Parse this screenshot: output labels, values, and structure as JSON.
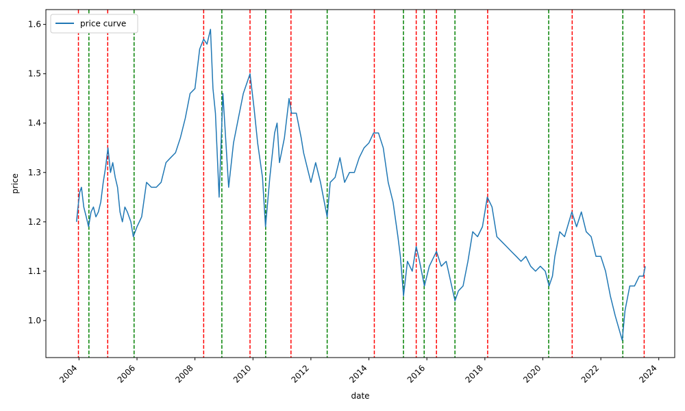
{
  "chart_data": {
    "type": "line",
    "xlabel": "date",
    "ylabel": "price",
    "xlim": [
      "2002-11-10",
      "2024-07-20"
    ],
    "ylim": [
      0.925,
      1.63
    ],
    "x_ticks": [
      "2004",
      "2006",
      "2008",
      "2010",
      "2012",
      "2014",
      "2016",
      "2018",
      "2020",
      "2022",
      "2024"
    ],
    "y_ticks": [
      "1.0",
      "1.1",
      "1.2",
      "1.3",
      "1.4",
      "1.5",
      "1.6"
    ],
    "legend": {
      "position": "top-left",
      "entries": [
        "price curve"
      ]
    },
    "series": [
      {
        "name": "price curve",
        "color": "#1f77b4",
        "points": [
          [
            "2003-12-01",
            1.2
          ],
          [
            "2003-12-20",
            1.23
          ],
          [
            "2004-01-10",
            1.26
          ],
          [
            "2004-02-01",
            1.27
          ],
          [
            "2004-03-01",
            1.23
          ],
          [
            "2004-04-01",
            1.21
          ],
          [
            "2004-05-01",
            1.19
          ],
          [
            "2004-06-01",
            1.22
          ],
          [
            "2004-07-01",
            1.23
          ],
          [
            "2004-08-01",
            1.21
          ],
          [
            "2004-09-01",
            1.22
          ],
          [
            "2004-10-01",
            1.24
          ],
          [
            "2004-11-01",
            1.28
          ],
          [
            "2004-12-01",
            1.31
          ],
          [
            "2004-12-31",
            1.35
          ],
          [
            "2005-02-01",
            1.3
          ],
          [
            "2005-03-01",
            1.32
          ],
          [
            "2005-04-01",
            1.29
          ],
          [
            "2005-05-01",
            1.27
          ],
          [
            "2005-06-01",
            1.22
          ],
          [
            "2005-07-01",
            1.2
          ],
          [
            "2005-08-01",
            1.23
          ],
          [
            "2005-09-01",
            1.22
          ],
          [
            "2005-10-15",
            1.2
          ],
          [
            "2005-11-15",
            1.17
          ],
          [
            "2006-01-01",
            1.19
          ],
          [
            "2006-03-01",
            1.21
          ],
          [
            "2006-05-01",
            1.28
          ],
          [
            "2006-07-01",
            1.27
          ],
          [
            "2006-09-01",
            1.27
          ],
          [
            "2006-11-01",
            1.28
          ],
          [
            "2007-01-01",
            1.32
          ],
          [
            "2007-03-01",
            1.33
          ],
          [
            "2007-05-01",
            1.34
          ],
          [
            "2007-07-01",
            1.37
          ],
          [
            "2007-09-01",
            1.41
          ],
          [
            "2007-11-01",
            1.46
          ],
          [
            "2008-01-01",
            1.47
          ],
          [
            "2008-03-01",
            1.55
          ],
          [
            "2008-04-20",
            1.57
          ],
          [
            "2008-06-01",
            1.56
          ],
          [
            "2008-07-15",
            1.59
          ],
          [
            "2008-08-15",
            1.47
          ],
          [
            "2008-09-15",
            1.42
          ],
          [
            "2008-11-01",
            1.25
          ],
          [
            "2008-12-18",
            1.46
          ],
          [
            "2009-03-01",
            1.27
          ],
          [
            "2009-05-01",
            1.36
          ],
          [
            "2009-07-01",
            1.41
          ],
          [
            "2009-09-01",
            1.46
          ],
          [
            "2009-11-25",
            1.5
          ],
          [
            "2010-01-15",
            1.43
          ],
          [
            "2010-03-01",
            1.36
          ],
          [
            "2010-05-01",
            1.29
          ],
          [
            "2010-06-08",
            1.19
          ],
          [
            "2010-08-01",
            1.29
          ],
          [
            "2010-10-01",
            1.38
          ],
          [
            "2010-11-01",
            1.4
          ],
          [
            "2010-12-01",
            1.32
          ],
          [
            "2011-02-01",
            1.37
          ],
          [
            "2011-04-01",
            1.45
          ],
          [
            "2011-05-01",
            1.42
          ],
          [
            "2011-07-01",
            1.42
          ],
          [
            "2011-09-01",
            1.37
          ],
          [
            "2011-10-01",
            1.34
          ],
          [
            "2011-12-01",
            1.3
          ],
          [
            "2012-01-01",
            1.28
          ],
          [
            "2012-03-01",
            1.32
          ],
          [
            "2012-05-01",
            1.28
          ],
          [
            "2012-07-24",
            1.21
          ],
          [
            "2012-09-01",
            1.28
          ],
          [
            "2012-11-01",
            1.29
          ],
          [
            "2013-01-01",
            1.33
          ],
          [
            "2013-03-01",
            1.28
          ],
          [
            "2013-05-01",
            1.3
          ],
          [
            "2013-07-01",
            1.3
          ],
          [
            "2013-09-01",
            1.33
          ],
          [
            "2013-11-01",
            1.35
          ],
          [
            "2014-01-01",
            1.36
          ],
          [
            "2014-03-01",
            1.38
          ],
          [
            "2014-05-01",
            1.38
          ],
          [
            "2014-07-01",
            1.35
          ],
          [
            "2014-09-01",
            1.28
          ],
          [
            "2014-11-01",
            1.24
          ],
          [
            "2015-01-01",
            1.17
          ],
          [
            "2015-02-01",
            1.13
          ],
          [
            "2015-03-13",
            1.05
          ],
          [
            "2015-05-01",
            1.12
          ],
          [
            "2015-07-01",
            1.1
          ],
          [
            "2015-08-20",
            1.15
          ],
          [
            "2015-10-01",
            1.12
          ],
          [
            "2015-12-01",
            1.07
          ],
          [
            "2016-02-01",
            1.11
          ],
          [
            "2016-05-01",
            1.14
          ],
          [
            "2016-07-01",
            1.11
          ],
          [
            "2016-09-01",
            1.12
          ],
          [
            "2016-12-20",
            1.04
          ],
          [
            "2017-02-01",
            1.06
          ],
          [
            "2017-04-01",
            1.07
          ],
          [
            "2017-06-01",
            1.12
          ],
          [
            "2017-08-01",
            1.18
          ],
          [
            "2017-10-01",
            1.17
          ],
          [
            "2017-12-01",
            1.19
          ],
          [
            "2018-02-01",
            1.25
          ],
          [
            "2018-04-01",
            1.23
          ],
          [
            "2018-06-01",
            1.17
          ],
          [
            "2018-08-01",
            1.16
          ],
          [
            "2018-10-01",
            1.15
          ],
          [
            "2018-12-01",
            1.14
          ],
          [
            "2019-02-01",
            1.13
          ],
          [
            "2019-04-01",
            1.12
          ],
          [
            "2019-06-01",
            1.13
          ],
          [
            "2019-08-01",
            1.11
          ],
          [
            "2019-10-01",
            1.1
          ],
          [
            "2019-12-01",
            1.11
          ],
          [
            "2020-02-01",
            1.1
          ],
          [
            "2020-03-20",
            1.07
          ],
          [
            "2020-05-01",
            1.09
          ],
          [
            "2020-06-01",
            1.13
          ],
          [
            "2020-08-01",
            1.18
          ],
          [
            "2020-10-01",
            1.17
          ],
          [
            "2021-01-01",
            1.22
          ],
          [
            "2021-03-01",
            1.19
          ],
          [
            "2021-05-01",
            1.22
          ],
          [
            "2021-07-01",
            1.18
          ],
          [
            "2021-09-01",
            1.17
          ],
          [
            "2021-11-01",
            1.13
          ],
          [
            "2022-01-01",
            1.13
          ],
          [
            "2022-03-01",
            1.1
          ],
          [
            "2022-05-01",
            1.05
          ],
          [
            "2022-07-01",
            1.01
          ],
          [
            "2022-09-28",
            0.96
          ],
          [
            "2022-11-01",
            1.02
          ],
          [
            "2023-01-01",
            1.07
          ],
          [
            "2023-03-01",
            1.07
          ],
          [
            "2023-05-01",
            1.09
          ],
          [
            "2023-06-20",
            1.09
          ],
          [
            "2023-07-15",
            1.11
          ]
        ]
      }
    ],
    "vlines": {
      "style": "dashed",
      "red": [
        "2003-12-25",
        "2004-12-28",
        "2008-04-20",
        "2009-11-25",
        "2011-04-25",
        "2014-03-10",
        "2015-08-20",
        "2016-05-01",
        "2018-02-05",
        "2021-01-05",
        "2023-07-01"
      ],
      "green": [
        "2004-05-05",
        "2005-11-25",
        "2008-12-05",
        "2010-06-10",
        "2012-07-24",
        "2015-03-12",
        "2015-11-28",
        "2016-12-20",
        "2020-03-15",
        "2022-10-05"
      ]
    },
    "colors": {
      "line": "#1f77b4",
      "red_vline": "#ff0000",
      "green_vline": "#008000"
    }
  }
}
